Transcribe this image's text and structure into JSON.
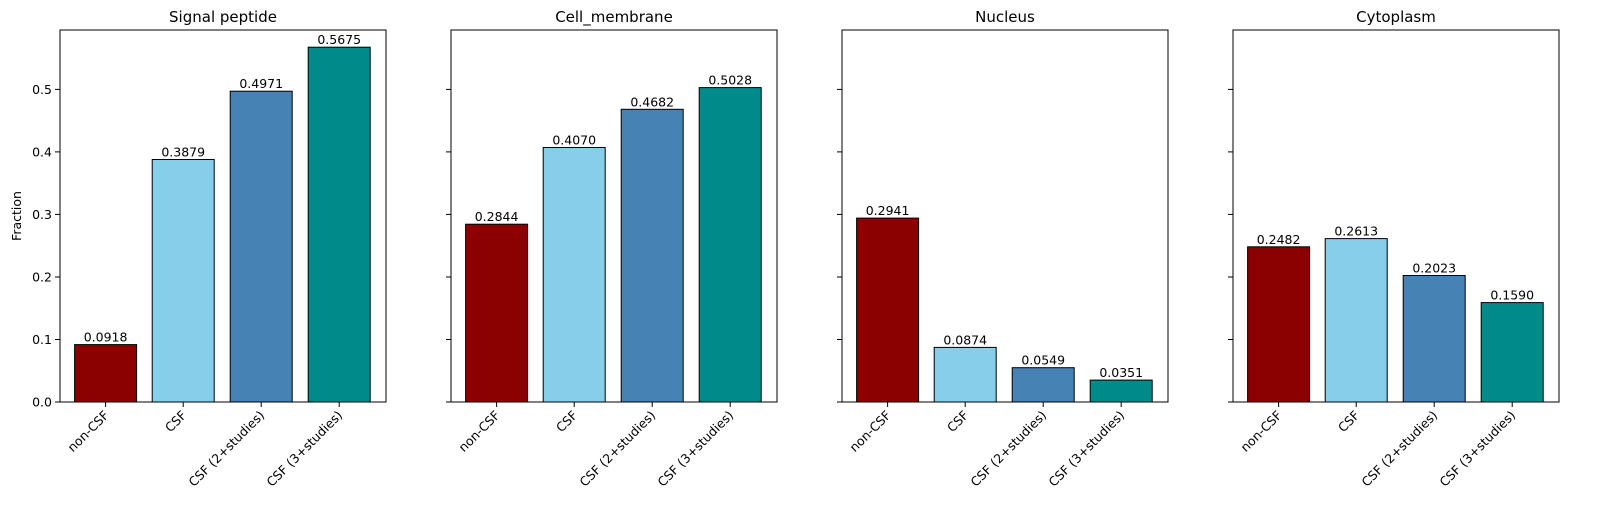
{
  "chart_data": {
    "type": "bar",
    "shared_y": true,
    "ylabel": "Fraction",
    "ylim": [
      0,
      0.595
    ],
    "yticks": [
      "0.0",
      "0.1",
      "0.2",
      "0.3",
      "0.4",
      "0.5"
    ],
    "categories": [
      "non-CSF",
      "CSF",
      "CSF (2+studies)",
      "CSF (3+studies)"
    ],
    "colors": [
      "#8b0000",
      "#87ceeb",
      "#4682b4",
      "#008b8b"
    ],
    "panels": [
      {
        "title": "Signal peptide",
        "values": [
          0.0918,
          0.3879,
          0.4971,
          0.5675
        ],
        "labels": [
          "0.0918",
          "0.3879",
          "0.4971",
          "0.5675"
        ]
      },
      {
        "title": "Cell_membrane",
        "values": [
          0.2844,
          0.407,
          0.4682,
          0.5028
        ],
        "labels": [
          "0.2844",
          "0.4070",
          "0.4682",
          "0.5028"
        ]
      },
      {
        "title": "Nucleus",
        "values": [
          0.2941,
          0.0874,
          0.0549,
          0.0351
        ],
        "labels": [
          "0.2941",
          "0.0874",
          "0.0549",
          "0.0351"
        ]
      },
      {
        "title": "Cytoplasm",
        "values": [
          0.2482,
          0.2613,
          0.2023,
          0.159
        ],
        "labels": [
          "0.2482",
          "0.2613",
          "0.2023",
          "0.1590"
        ]
      }
    ]
  }
}
